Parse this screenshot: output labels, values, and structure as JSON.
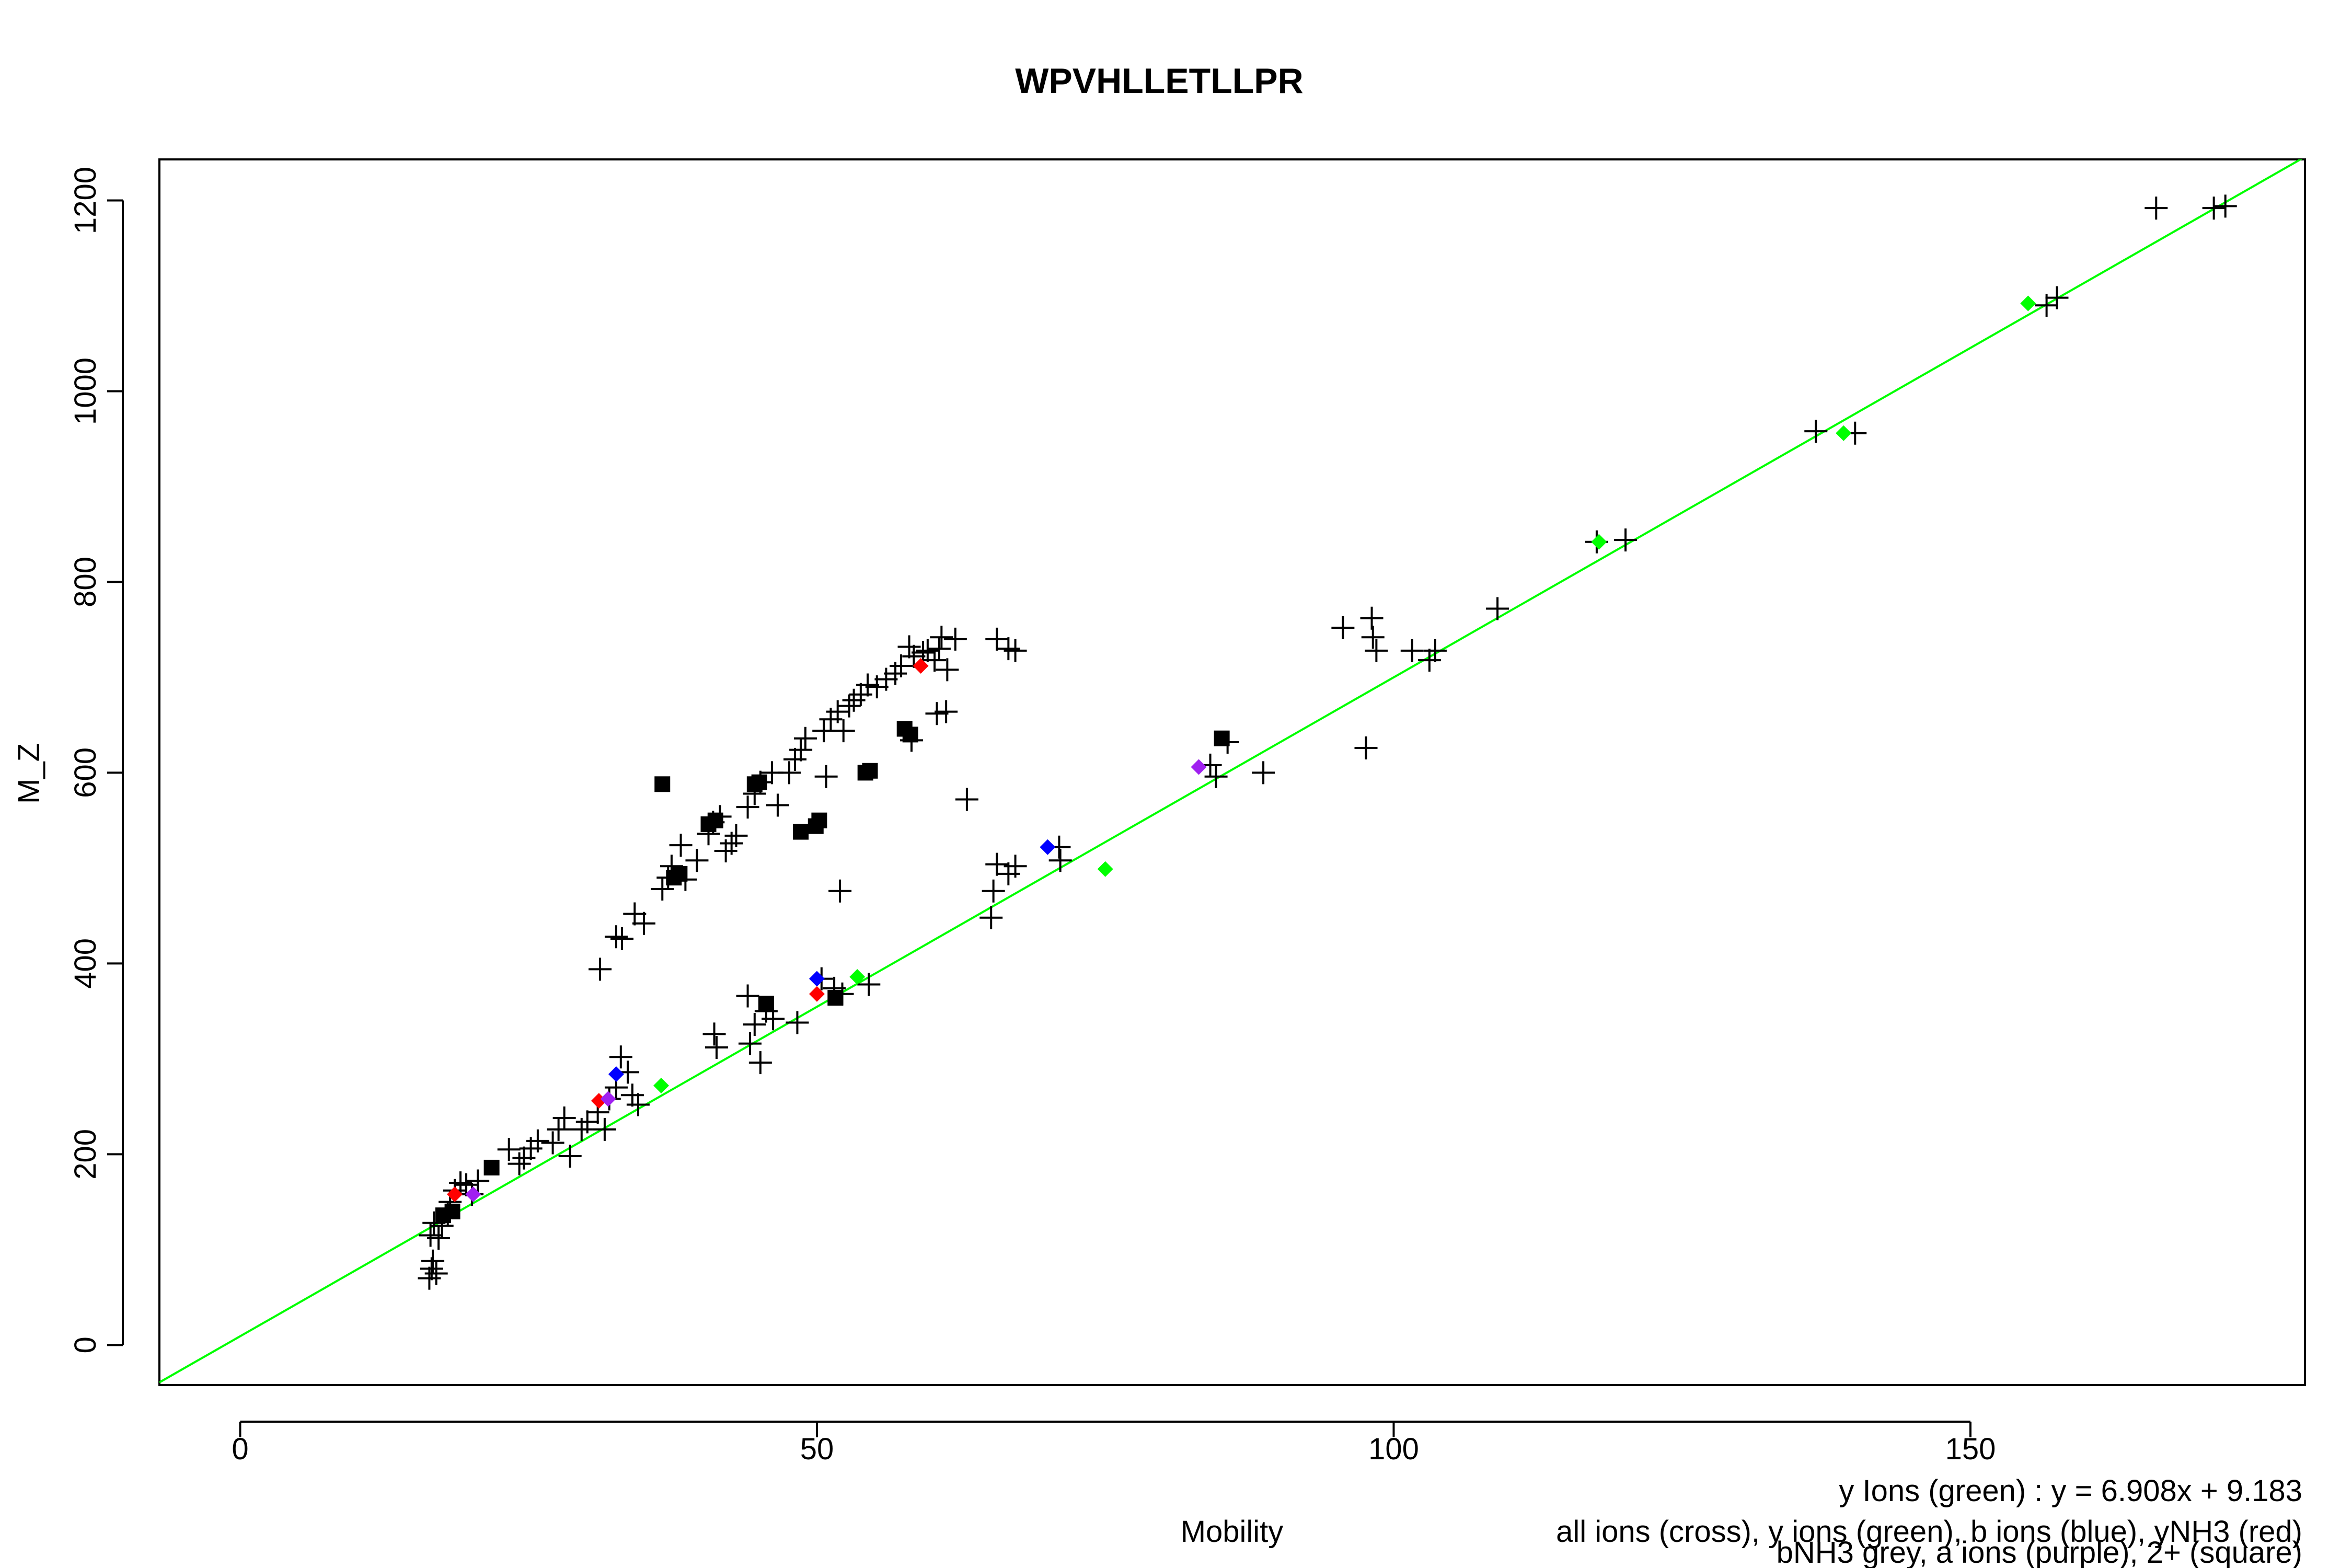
{
  "chart_data": {
    "type": "scatter",
    "title": "WPVHLLETLLPR",
    "xlabel": "Mobility",
    "ylabel": "M_Z",
    "xlim": [
      -7,
      179
    ],
    "ylim": [
      -42,
      1243
    ],
    "x_ticks": [
      0,
      50,
      100,
      150
    ],
    "y_ticks": [
      0,
      200,
      400,
      600,
      800,
      1000,
      1200
    ],
    "fit_line": {
      "label": "y Ions (green) : y = 6.908x + 9.183",
      "slope": 6.908,
      "intercept": 9.183,
      "color": "#00ff00"
    },
    "legend": [
      "all ions (cross), y ions (green), b ions (blue), yNH3 (red)",
      "bNH3 grey, a ions (purple), 2+ (square)"
    ],
    "series": [
      {
        "name": "all ions (cross)",
        "marker": "cross",
        "color": "#000000",
        "points": [
          [
            16.4,
            70
          ],
          [
            16.6,
            80
          ],
          [
            16.7,
            88
          ],
          [
            17.0,
            75
          ],
          [
            16.5,
            115
          ],
          [
            16.8,
            128
          ],
          [
            17.2,
            112
          ],
          [
            17.5,
            125
          ],
          [
            18.0,
            138
          ],
          [
            18.2,
            150
          ],
          [
            18.6,
            162
          ],
          [
            19.1,
            170
          ],
          [
            19.6,
            168
          ],
          [
            20.1,
            158
          ],
          [
            20.6,
            172
          ],
          [
            23.3,
            205
          ],
          [
            24.2,
            190
          ],
          [
            24.6,
            196
          ],
          [
            25.2,
            206
          ],
          [
            25.8,
            214
          ],
          [
            27.1,
            212
          ],
          [
            27.6,
            226
          ],
          [
            28.1,
            238
          ],
          [
            28.6,
            198
          ],
          [
            29.6,
            226
          ],
          [
            30.1,
            234
          ],
          [
            31.0,
            244
          ],
          [
            31.6,
            226
          ],
          [
            32.0,
            258
          ],
          [
            32.6,
            270
          ],
          [
            33.0,
            302
          ],
          [
            33.6,
            286
          ],
          [
            34.0,
            262
          ],
          [
            34.5,
            252
          ],
          [
            31.2,
            394
          ],
          [
            32.6,
            428
          ],
          [
            33.1,
            426
          ],
          [
            34.2,
            452
          ],
          [
            35.0,
            442
          ],
          [
            36.6,
            478
          ],
          [
            37.1,
            490
          ],
          [
            37.4,
            502
          ],
          [
            38.2,
            524
          ],
          [
            38.6,
            488
          ],
          [
            39.6,
            508
          ],
          [
            40.6,
            536
          ],
          [
            41.0,
            548
          ],
          [
            41.6,
            554
          ],
          [
            42.1,
            518
          ],
          [
            42.6,
            526
          ],
          [
            43.0,
            534
          ],
          [
            44.0,
            564
          ],
          [
            44.6,
            578
          ],
          [
            45.1,
            590
          ],
          [
            46.1,
            600
          ],
          [
            46.6,
            566
          ],
          [
            47.6,
            600
          ],
          [
            48.1,
            614
          ],
          [
            48.6,
            624
          ],
          [
            49.0,
            636
          ],
          [
            50.6,
            644
          ],
          [
            51.2,
            656
          ],
          [
            51.8,
            664
          ],
          [
            52.3,
            644
          ],
          [
            52.8,
            670
          ],
          [
            53.2,
            676
          ],
          [
            53.8,
            682
          ],
          [
            54.4,
            692
          ],
          [
            55.2,
            690
          ],
          [
            56.0,
            698
          ],
          [
            56.8,
            704
          ],
          [
            57.3,
            712
          ],
          [
            58.0,
            732
          ],
          [
            58.4,
            722
          ],
          [
            59.2,
            726
          ],
          [
            59.6,
            728
          ],
          [
            60.2,
            718
          ],
          [
            60.6,
            730
          ],
          [
            60.8,
            742
          ],
          [
            61.3,
            708
          ],
          [
            62.0,
            740
          ],
          [
            61.2,
            664
          ],
          [
            60.4,
            662
          ],
          [
            58.2,
            634
          ],
          [
            63.0,
            572
          ],
          [
            50.8,
            596
          ],
          [
            52.0,
            476
          ],
          [
            41.1,
            326
          ],
          [
            41.3,
            312
          ],
          [
            44.2,
            316
          ],
          [
            44.6,
            336
          ],
          [
            45.1,
            296
          ],
          [
            44.0,
            366
          ],
          [
            45.6,
            350
          ],
          [
            46.2,
            342
          ],
          [
            48.3,
            338
          ],
          [
            50.4,
            384
          ],
          [
            51.5,
            374
          ],
          [
            52.2,
            368
          ],
          [
            54.5,
            378
          ],
          [
            65.3,
            476
          ],
          [
            65.1,
            448
          ],
          [
            65.6,
            504
          ],
          [
            66.6,
            494
          ],
          [
            67.2,
            502
          ],
          [
            71.1,
            508
          ],
          [
            71.0,
            522
          ],
          [
            65.6,
            740
          ],
          [
            66.6,
            730
          ],
          [
            67.2,
            728
          ],
          [
            84.1,
            608
          ],
          [
            84.6,
            596
          ],
          [
            85.6,
            632
          ],
          [
            88.7,
            600
          ],
          [
            95.6,
            752
          ],
          [
            97.6,
            626
          ],
          [
            98.1,
            762
          ],
          [
            98.2,
            742
          ],
          [
            98.5,
            728
          ],
          [
            101.6,
            728
          ],
          [
            103.1,
            718
          ],
          [
            103.6,
            728
          ],
          [
            109.0,
            772
          ],
          [
            117.6,
            842
          ],
          [
            120.1,
            844
          ],
          [
            136.6,
            958
          ],
          [
            140.0,
            956
          ],
          [
            156.6,
            1090
          ],
          [
            157.5,
            1098
          ],
          [
            166.1,
            1192
          ],
          [
            171.1,
            1192
          ],
          [
            172.1,
            1194
          ]
        ]
      },
      {
        "name": "y ions (green)",
        "marker": "diamond",
        "color": "#00ff00",
        "points": [
          [
            36.5,
            272
          ],
          [
            53.5,
            386
          ],
          [
            75.0,
            499
          ],
          [
            117.8,
            842
          ],
          [
            139.0,
            956
          ],
          [
            155.0,
            1092
          ]
        ]
      },
      {
        "name": "b ions (blue)",
        "marker": "diamond",
        "color": "#0000ff",
        "points": [
          [
            32.6,
            284
          ],
          [
            50.0,
            384
          ],
          [
            70.0,
            522
          ]
        ]
      },
      {
        "name": "yNH3 (red)",
        "marker": "diamond",
        "color": "#ff0000",
        "points": [
          [
            18.6,
            158
          ],
          [
            31.1,
            256
          ],
          [
            50.0,
            368
          ],
          [
            59.0,
            712
          ]
        ]
      },
      {
        "name": "a ions (purple)",
        "marker": "diamond",
        "color": "#a020f0",
        "points": [
          [
            20.2,
            158
          ],
          [
            31.9,
            258
          ],
          [
            83.1,
            606
          ]
        ]
      },
      {
        "name": "2+ (square)",
        "marker": "square",
        "color": "#000000",
        "points": [
          [
            17.6,
            136
          ],
          [
            18.4,
            140
          ],
          [
            21.8,
            186
          ],
          [
            36.6,
            588
          ],
          [
            37.6,
            490
          ],
          [
            38.1,
            494
          ],
          [
            40.6,
            546
          ],
          [
            41.2,
            550
          ],
          [
            44.6,
            588
          ],
          [
            45.0,
            590
          ],
          [
            45.6,
            358
          ],
          [
            48.6,
            538
          ],
          [
            49.9,
            544
          ],
          [
            50.2,
            550
          ],
          [
            51.6,
            364
          ],
          [
            54.2,
            600
          ],
          [
            54.6,
            602
          ],
          [
            57.6,
            646
          ],
          [
            58.1,
            640
          ],
          [
            85.1,
            636
          ]
        ]
      }
    ]
  }
}
